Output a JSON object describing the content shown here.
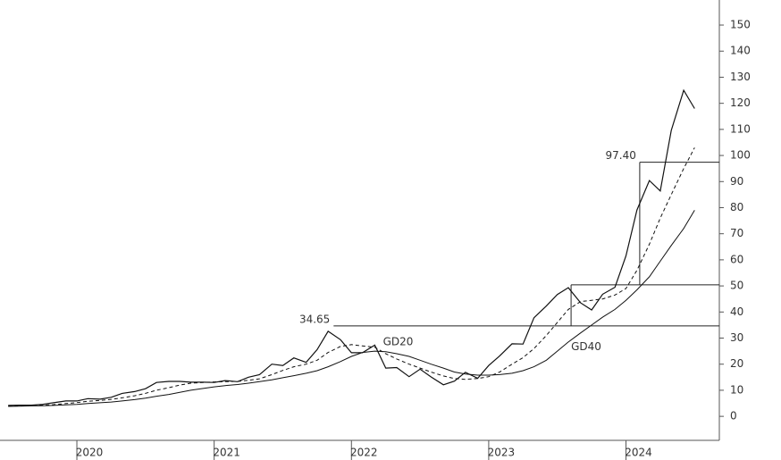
{
  "chart_data": {
    "type": "line",
    "x": [
      2019.5,
      2019.58,
      2019.67,
      2019.75,
      2019.83,
      2019.92,
      2020,
      2020.08,
      2020.17,
      2020.25,
      2020.33,
      2020.42,
      2020.5,
      2020.58,
      2020.67,
      2020.75,
      2020.83,
      2020.92,
      2021,
      2021.08,
      2021.17,
      2021.25,
      2021.33,
      2021.42,
      2021.5,
      2021.58,
      2021.67,
      2021.75,
      2021.83,
      2021.92,
      2022,
      2022.08,
      2022.17,
      2022.25,
      2022.33,
      2022.42,
      2022.5,
      2022.58,
      2022.67,
      2022.75,
      2022.83,
      2022.92,
      2023,
      2023.08,
      2023.17,
      2023.25,
      2023.33,
      2023.42,
      2023.5,
      2023.58,
      2023.67,
      2023.75,
      2023.83,
      2023.92,
      2024,
      2024.08,
      2024.17,
      2024.25,
      2024.33,
      2024.42,
      2024.5
    ],
    "series": [
      {
        "color": "#111111",
        "dash": "none",
        "width": 1.2,
        "values": [
          4.2,
          4.3,
          4.3,
          4.6,
          5.2,
          5.9,
          5.9,
          6.8,
          6.6,
          7.3,
          8.8,
          9.5,
          10.6,
          13.0,
          13.4,
          13.4,
          13.1,
          13.1,
          13.0,
          13.7,
          13.3,
          15.0,
          16.0,
          20.0,
          19.5,
          22.4,
          20.7,
          25.6,
          32.6,
          29.4,
          24.4,
          24.4,
          27.3,
          18.5,
          18.7,
          15.2,
          18.1,
          15.1,
          12.1,
          13.5,
          16.9,
          14.6,
          19.5,
          23.2,
          27.8,
          27.7,
          37.8,
          42.3,
          46.7,
          49.3,
          43.5,
          40.8,
          46.8,
          49.5,
          61.5,
          79.1,
          90.4,
          86.4,
          109.6,
          125.0,
          118.0
        ]
      },
      {
        "color": "#111111",
        "dash": "4 3",
        "width": 1,
        "values": [
          4.0,
          4.1,
          4.2,
          4.3,
          4.5,
          4.9,
          5.3,
          5.8,
          6.1,
          6.5,
          7.1,
          7.9,
          8.8,
          10.0,
          11.0,
          12.0,
          12.7,
          13.0,
          13.2,
          13.3,
          13.4,
          13.8,
          14.4,
          16.0,
          17.6,
          19.0,
          20.0,
          21.5,
          24.5,
          26.8,
          27.5,
          27.0,
          26.5,
          24.0,
          22.0,
          20.0,
          18.5,
          17.0,
          15.5,
          14.5,
          14.2,
          14.5,
          15.2,
          17.0,
          20.0,
          22.5,
          26.0,
          31.0,
          36.0,
          41.0,
          44.0,
          44.5,
          45.0,
          46.5,
          49.0,
          56.0,
          66.0,
          76.0,
          85.0,
          95.0,
          103.0
        ]
      },
      {
        "color": "#111111",
        "dash": "none",
        "width": 1,
        "values": [
          3.8,
          3.9,
          4.0,
          4.1,
          4.2,
          4.4,
          4.6,
          4.9,
          5.2,
          5.5,
          5.9,
          6.4,
          7.0,
          7.7,
          8.4,
          9.2,
          10.0,
          10.7,
          11.3,
          11.8,
          12.2,
          12.7,
          13.3,
          14.0,
          14.8,
          15.6,
          16.5,
          17.5,
          19.0,
          21.0,
          23.0,
          24.5,
          25.0,
          24.8,
          24.0,
          23.0,
          21.5,
          20.0,
          18.5,
          17.0,
          16.2,
          15.8,
          15.8,
          16.0,
          16.5,
          17.5,
          19.0,
          21.5,
          25.0,
          28.5,
          32.0,
          35.0,
          38.0,
          41.0,
          44.5,
          48.5,
          53.5,
          59.5,
          65.5,
          72.0,
          79.0
        ]
      }
    ],
    "levels": [
      {
        "value": 34.65,
        "label": "34.65",
        "from": 2021.87
      },
      {
        "value": 50.4,
        "from": 2023.6
      },
      {
        "value": 97.4,
        "label": "97.40",
        "from": 2024.1
      }
    ],
    "annotations": [
      {
        "text": "GD20",
        "x": 2022.23,
        "y": 28.5
      },
      {
        "text": "GD40",
        "x": 2023.6,
        "y": 26.5
      }
    ],
    "xlim": [
      2019.44,
      2024.68
    ],
    "xticks": [
      2020,
      2021,
      2022,
      2023,
      2024
    ],
    "ylim": [
      -9.2,
      159.6
    ],
    "yticks": [
      0,
      10,
      20,
      30,
      40,
      50,
      60,
      70,
      80,
      90,
      100,
      110,
      120,
      130,
      140,
      150
    ],
    "axis_color": "#555555"
  }
}
